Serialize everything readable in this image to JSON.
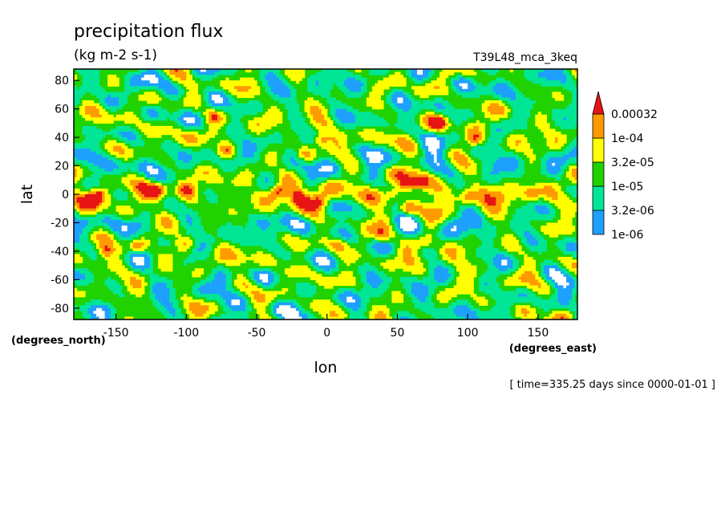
{
  "chart_data": {
    "type": "heatmap",
    "title": "precipitation flux",
    "units": "(kg m-2 s-1)",
    "run_label": "T39L48_mca_3keq",
    "xlabel": "lon",
    "ylabel": "lat",
    "x_unit_label": "(degrees_east)",
    "y_unit_label": "(degrees_north)",
    "time_label": "[ time=335.25 days since 0000-01-01 ]",
    "xlim": [
      -180,
      178
    ],
    "ylim": [
      -88,
      88
    ],
    "x_ticks": [
      -150,
      -100,
      -50,
      0,
      50,
      100,
      150
    ],
    "y_ticks": [
      -80,
      -60,
      -40,
      -20,
      0,
      20,
      40,
      60,
      80
    ],
    "legend": {
      "position": "right",
      "levels": [
        "1e-06",
        "3.2e-06",
        "1e-05",
        "3.2e-05",
        "1e-04",
        "0.00032"
      ],
      "level_values": [
        1e-06,
        3.2e-06,
        1e-05,
        3.2e-05,
        0.0001,
        0.00032
      ],
      "colors": [
        "#ffffff",
        "#1ea0ff",
        "#00e696",
        "#20d200",
        "#ffff00",
        "#ff9a00",
        "#e61414"
      ]
    },
    "features": [
      {
        "lon": -162,
        "lat": 0,
        "value": 0.0004
      },
      {
        "lon": -158,
        "lat": -40,
        "value": 0.00035
      },
      {
        "lon": -135,
        "lat": -37,
        "value": 0.00033
      },
      {
        "lon": -120,
        "lat": 3,
        "value": 0.00034
      },
      {
        "lon": -100,
        "lat": 3,
        "value": 0.00025
      },
      {
        "lon": -72,
        "lat": 30,
        "value": 0.00035
      },
      {
        "lon": -35,
        "lat": 2,
        "value": 0.0004
      },
      {
        "lon": -20,
        "lat": -2,
        "value": 0.00035
      },
      {
        "lon": -5,
        "lat": -5,
        "value": 0.00035
      },
      {
        "lon": -15,
        "lat": 28,
        "value": 0.00033
      },
      {
        "lon": -5,
        "lat": 38,
        "value": 0.00036
      },
      {
        "lon": 8,
        "lat": -35,
        "value": 0.00038
      },
      {
        "lon": 47,
        "lat": 0,
        "value": 0.00036
      },
      {
        "lon": 57,
        "lat": -10,
        "value": 0.00034
      },
      {
        "lon": 56,
        "lat": 6,
        "value": 0.00033
      },
      {
        "lon": 66,
        "lat": 9,
        "value": 0.00035
      },
      {
        "lon": 100,
        "lat": -2,
        "value": 0.0004
      },
      {
        "lon": 145,
        "lat": 1,
        "value": 0.0004
      },
      {
        "lon": 105,
        "lat": 38,
        "value": 0.00033
      },
      {
        "lon": 70,
        "lat": -33,
        "value": 0.00025
      },
      {
        "lon": 40,
        "lat": -30,
        "value": 0.0002
      },
      {
        "lon": -100,
        "lat": -35,
        "value": 0.0001
      },
      {
        "lon": 80,
        "lat": 50,
        "value": 0.00015
      },
      {
        "lon": -80,
        "lat": 55,
        "value": 0.00012
      }
    ]
  }
}
